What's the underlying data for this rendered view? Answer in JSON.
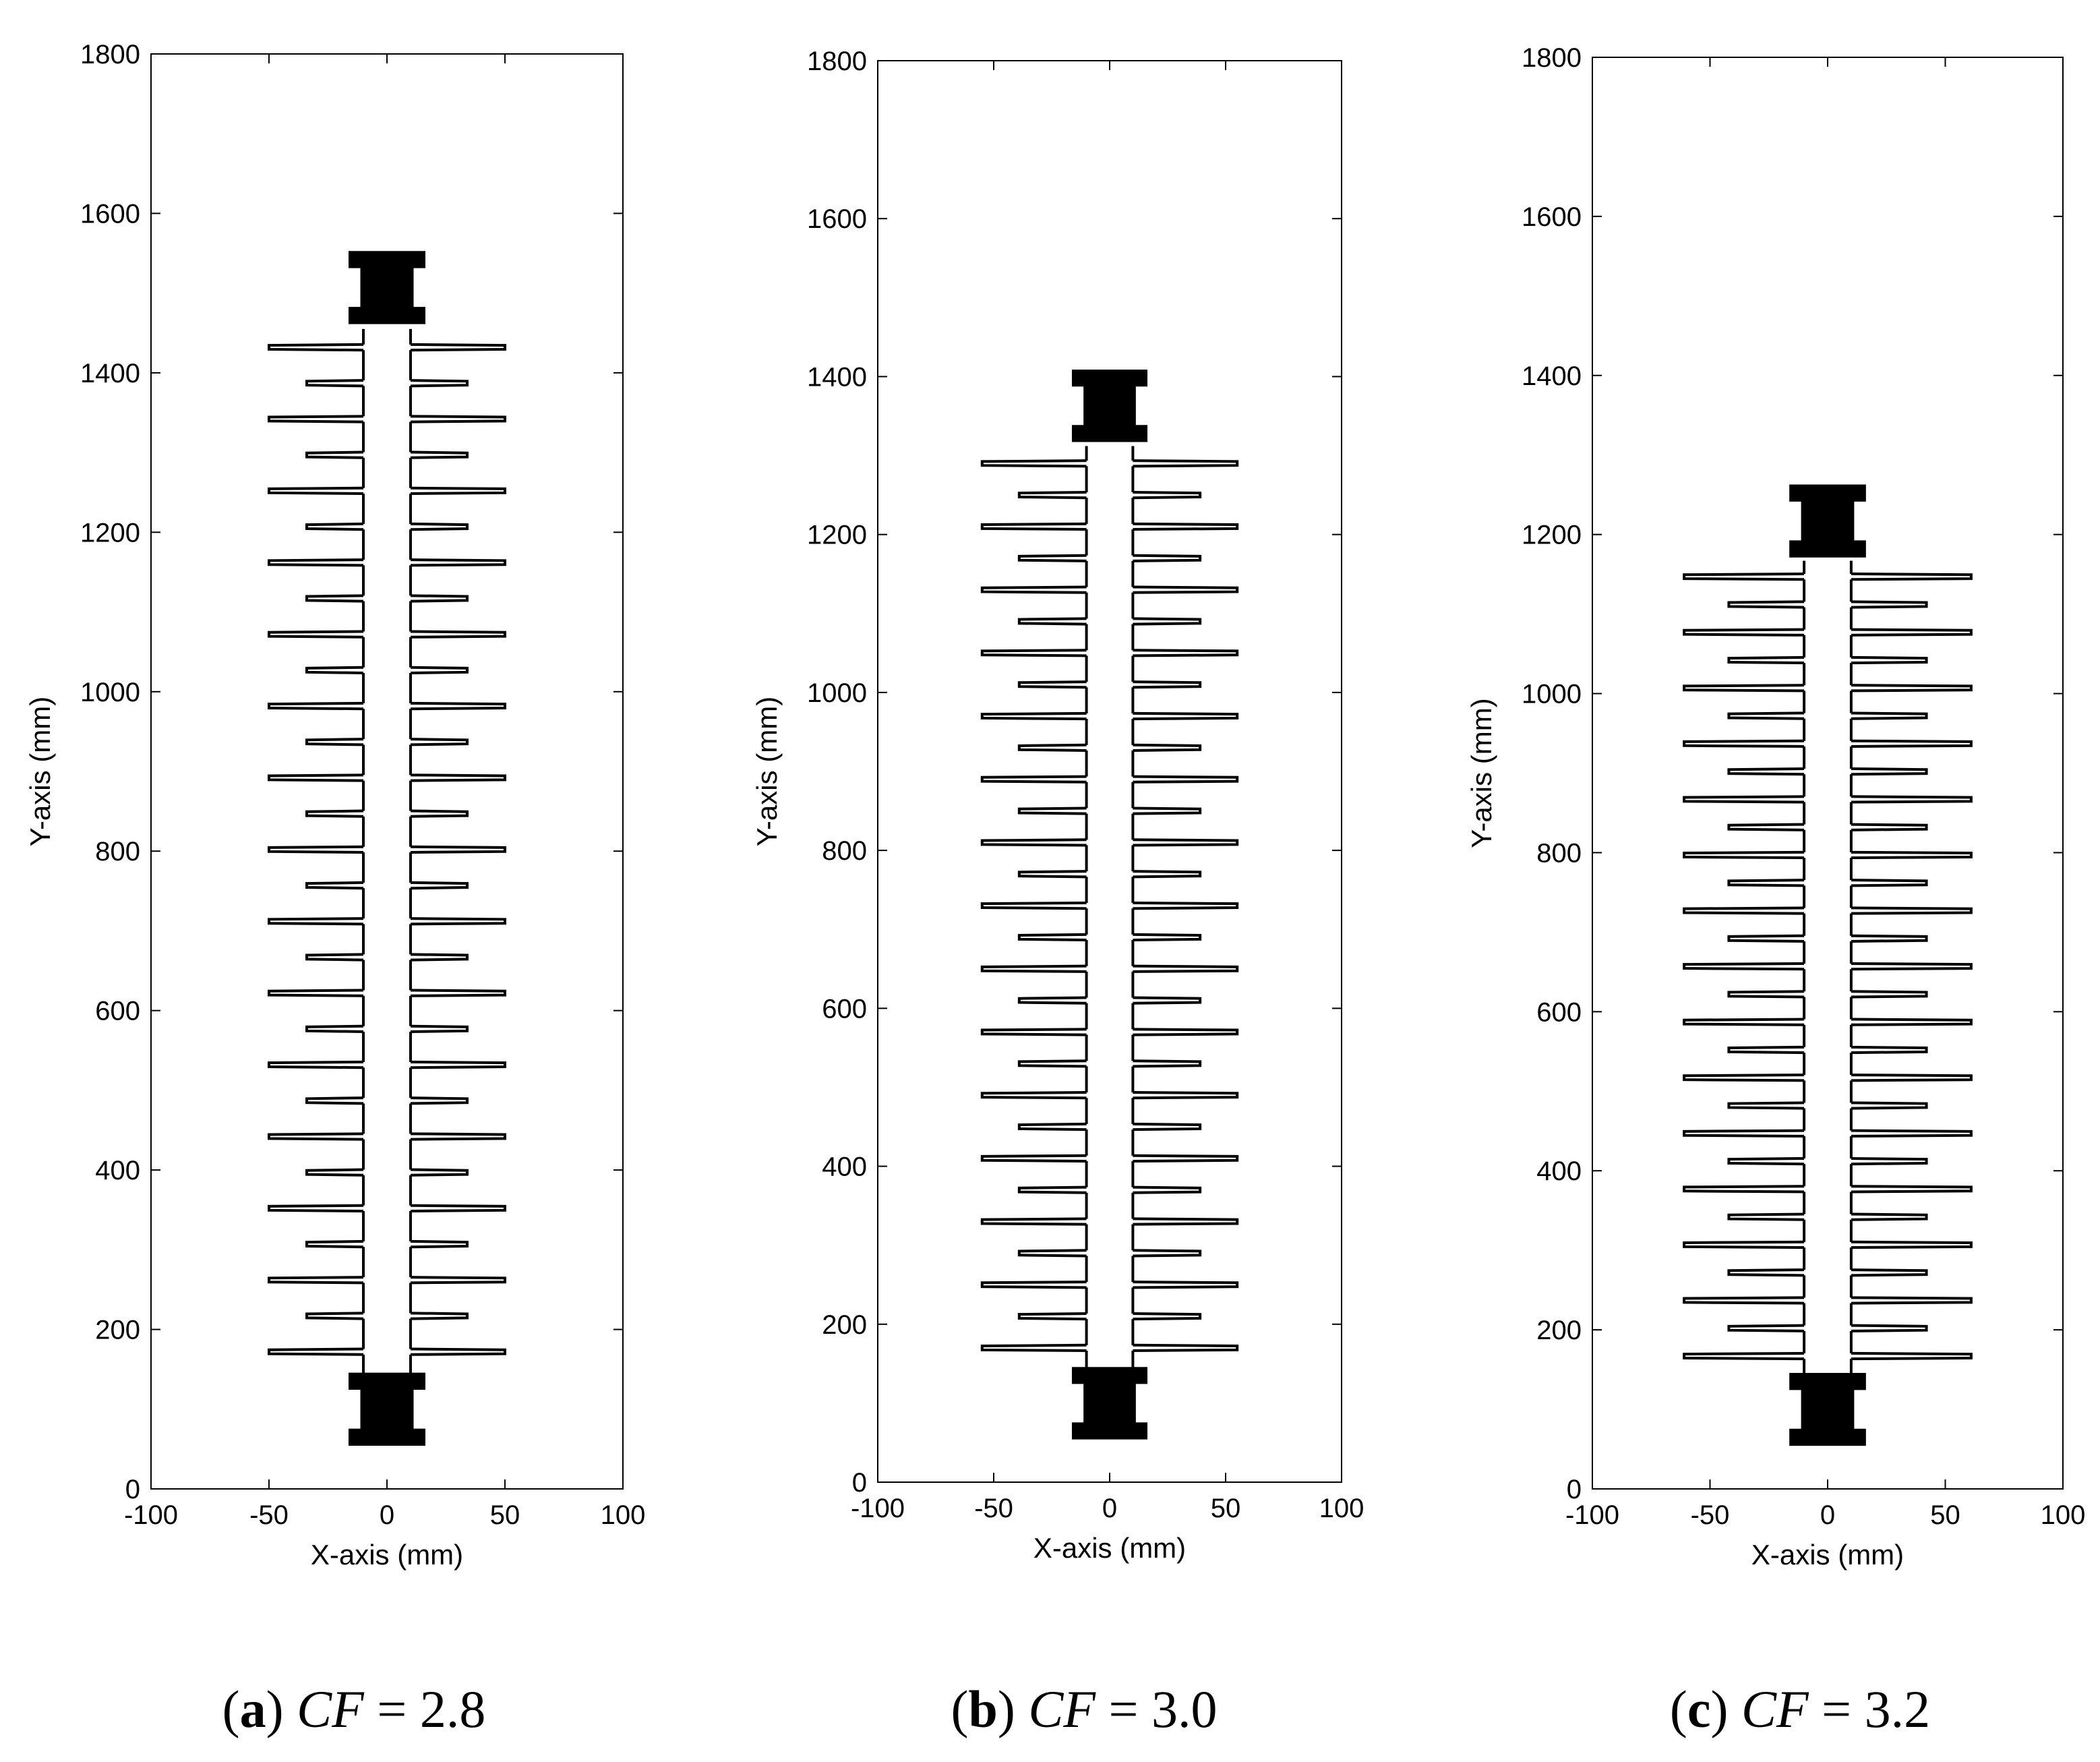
{
  "figure": {
    "panels": [
      {
        "letter": "a",
        "variable": "CF",
        "equals": "=",
        "value": "2.8"
      },
      {
        "letter": "b",
        "variable": "CF",
        "equals": "=",
        "value": "3.0"
      },
      {
        "letter": "c",
        "variable": "CF",
        "equals": "=",
        "value": "3.2"
      }
    ]
  },
  "chart_data": [
    {
      "type": "line",
      "panel": "a",
      "xlabel": "X-axis (mm)",
      "ylabel": "Y-axis (mm)",
      "xlim": [
        -100,
        100
      ],
      "ylim": [
        0,
        1800
      ],
      "xticks": [
        -100,
        -50,
        0,
        50,
        100
      ],
      "yticks": [
        0,
        200,
        400,
        600,
        800,
        1000,
        1200,
        1400,
        1600,
        1800
      ],
      "grid": false,
      "stroke_color": "#000000",
      "insulator": {
        "core_radius": 10,
        "core_bottom": 145,
        "core_top": 1455,
        "large_shed_radius": 50,
        "small_shed_radius": 34,
        "large_shed_y": [
          172,
          262,
          352,
          442,
          532,
          622,
          712,
          802,
          892,
          982,
          1072,
          1162,
          1252,
          1342,
          1432
        ],
        "small_shed_y": [
          217,
          307,
          397,
          487,
          577,
          667,
          757,
          847,
          937,
          1027,
          1117,
          1207,
          1297,
          1387
        ],
        "bottom_fitting": {
          "y_bottom": 55,
          "y_top": 145
        },
        "top_fitting": {
          "y_bottom": 1462,
          "y_top": 1552
        }
      }
    },
    {
      "type": "line",
      "panel": "b",
      "xlabel": "X-axis (mm)",
      "ylabel": "Y-axis (mm)",
      "xlim": [
        -100,
        100
      ],
      "ylim": [
        0,
        1800
      ],
      "xticks": [
        -100,
        -50,
        0,
        50,
        100
      ],
      "yticks": [
        0,
        200,
        400,
        600,
        800,
        1000,
        1200,
        1400,
        1600,
        1800
      ],
      "grid": false,
      "stroke_color": "#000000",
      "insulator": {
        "core_radius": 10,
        "core_bottom": 145,
        "core_top": 1312,
        "large_shed_radius": 55,
        "small_shed_radius": 39,
        "large_shed_y": [
          170,
          250,
          330,
          410,
          490,
          570,
          650,
          730,
          810,
          890,
          970,
          1050,
          1130,
          1210,
          1290
        ],
        "small_shed_y": [
          210,
          290,
          370,
          450,
          530,
          610,
          690,
          770,
          850,
          930,
          1010,
          1090,
          1170,
          1250
        ],
        "bottom_fitting": {
          "y_bottom": 55,
          "y_top": 145
        },
        "top_fitting": {
          "y_bottom": 1318,
          "y_top": 1408
        }
      }
    },
    {
      "type": "line",
      "panel": "c",
      "xlabel": "X-axis (mm)",
      "ylabel": "Y-axis (mm)",
      "xlim": [
        -100,
        100
      ],
      "ylim": [
        0,
        1800
      ],
      "xticks": [
        -100,
        -50,
        0,
        50,
        100
      ],
      "yticks": [
        0,
        200,
        400,
        600,
        800,
        1000,
        1200,
        1400,
        1600,
        1800
      ],
      "grid": false,
      "stroke_color": "#000000",
      "insulator": {
        "core_radius": 10,
        "core_bottom": 145,
        "core_top": 1167,
        "large_shed_radius": 61,
        "small_shed_radius": 42,
        "large_shed_y": [
          167,
          237,
          307,
          377,
          447,
          517,
          587,
          657,
          727,
          797,
          867,
          937,
          1007,
          1077,
          1147
        ],
        "small_shed_y": [
          202,
          272,
          342,
          412,
          482,
          552,
          622,
          692,
          762,
          832,
          902,
          972,
          1042,
          1112
        ],
        "bottom_fitting": {
          "y_bottom": 55,
          "y_top": 145
        },
        "top_fitting": {
          "y_bottom": 1172,
          "y_top": 1262
        }
      }
    }
  ]
}
